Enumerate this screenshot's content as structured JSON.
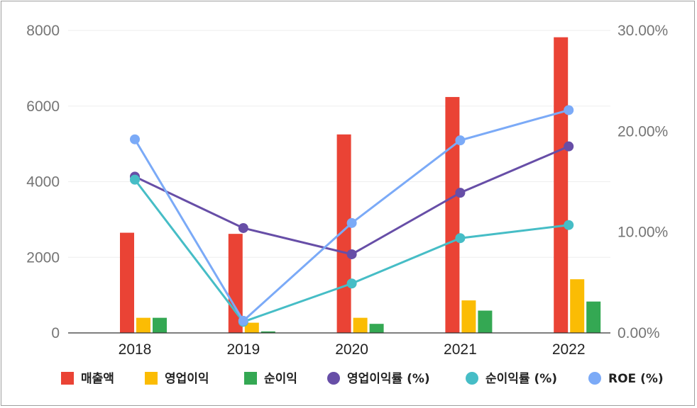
{
  "chart_data": {
    "type": "bar+line",
    "title": "",
    "categories": [
      "2018",
      "2019",
      "2020",
      "2021",
      "2022"
    ],
    "y_left": {
      "ticks": [
        "0",
        "2000",
        "4000",
        "6000",
        "8000"
      ],
      "range": [
        0,
        8000
      ]
    },
    "y_right": {
      "ticks": [
        "0.00%",
        "10.00%",
        "20.00%",
        "30.00%"
      ],
      "range": [
        0,
        30
      ]
    },
    "bar_series": [
      {
        "name": "매출액",
        "color": "#ea4335",
        "values": [
          2650,
          2620,
          5250,
          6240,
          7820
        ]
      },
      {
        "name": "영업이익",
        "color": "#fbbc04",
        "values": [
          400,
          270,
          400,
          860,
          1420
        ]
      },
      {
        "name": "순이익",
        "color": "#34a853",
        "values": [
          400,
          40,
          240,
          590,
          830
        ]
      }
    ],
    "line_series": [
      {
        "name": "영업이익률 (%)",
        "color": "#674ea7",
        "values": [
          15.5,
          10.4,
          7.8,
          13.9,
          18.5
        ]
      },
      {
        "name": "순이익률 (%)",
        "color": "#46bdc6",
        "values": [
          15.2,
          1.1,
          4.9,
          9.4,
          10.7
        ]
      },
      {
        "name": "ROE (%)",
        "color": "#7baaf7",
        "values": [
          19.2,
          1.2,
          10.9,
          19.1,
          22.1
        ]
      }
    ],
    "grid": true,
    "legend_position": "bottom"
  }
}
